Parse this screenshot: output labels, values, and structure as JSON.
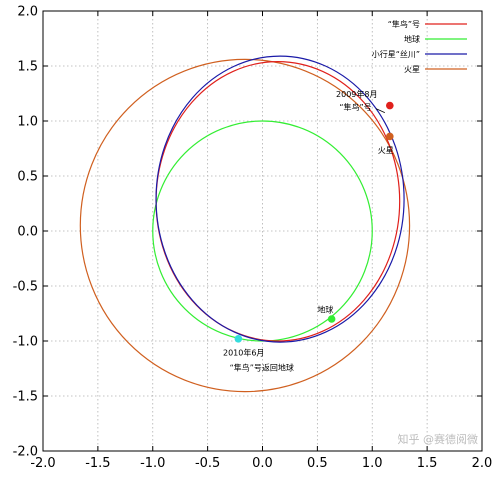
{
  "chart_data": {
    "type": "line",
    "xlim": [
      -2.0,
      2.0
    ],
    "ylim": [
      -2.0,
      2.0
    ],
    "x_ticks": [
      "-2.0",
      "-1.5",
      "-1.0",
      "-0.5",
      "0.0",
      "0.5",
      "1.0",
      "1.5",
      "2.0"
    ],
    "y_ticks": [
      "2.0",
      "1.5",
      "1.0",
      "0.5",
      "0.0",
      "-0.5",
      "-1.0",
      "-1.5",
      "-2.0"
    ],
    "grid": true,
    "legend_position": "top-right",
    "series": [
      {
        "name": "“隼鸟”号",
        "color": "#e0201c",
        "orbit": {
          "cx": 0.14,
          "cy": 0.27,
          "rx": 1.11,
          "ry": 1.27,
          "angle_deg": 0
        }
      },
      {
        "name": "地球",
        "color": "#33ee33",
        "orbit": {
          "cx": 0.0,
          "cy": 0.0,
          "rx": 1.0,
          "ry": 1.0,
          "angle_deg": 0
        }
      },
      {
        "name": "小行星“丝川”",
        "color": "#1a1aa8",
        "orbit": {
          "cx": 0.16,
          "cy": 0.29,
          "rx": 1.13,
          "ry": 1.3,
          "angle_deg": 0
        }
      },
      {
        "name": "火星",
        "color": "#d06020",
        "orbit": {
          "cx": -0.16,
          "cy": 0.05,
          "rx": 1.5,
          "ry": 1.51,
          "angle_deg": 0
        }
      }
    ],
    "points": [
      {
        "label": "“隼鸟”号",
        "color": "#e0201c",
        "x": 1.16,
        "y": 1.14
      },
      {
        "label": "火星",
        "color": "#d06020",
        "x": 1.16,
        "y": 0.86
      },
      {
        "label": "地球",
        "color": "#33ee33",
        "x": 0.63,
        "y": -0.8
      },
      {
        "label": "",
        "color": "#33dddd",
        "x": -0.22,
        "y": -0.98
      }
    ],
    "annotations": [
      {
        "text": "2009年8月",
        "x": 0.67,
        "y": 1.22
      },
      {
        "text": "“隼鸟”号",
        "x": 0.7,
        "y": 1.1
      },
      {
        "text": "火星",
        "x": 1.05,
        "y": 0.71
      },
      {
        "text": "地球",
        "x": 0.5,
        "y": -0.74
      },
      {
        "text": "2010年6月",
        "x": -0.36,
        "y": -1.13
      },
      {
        "text": "“隼鸟”号返回地球",
        "x": -0.3,
        "y": -1.27
      }
    ]
  },
  "watermark": "知乎 @赛德阅微"
}
